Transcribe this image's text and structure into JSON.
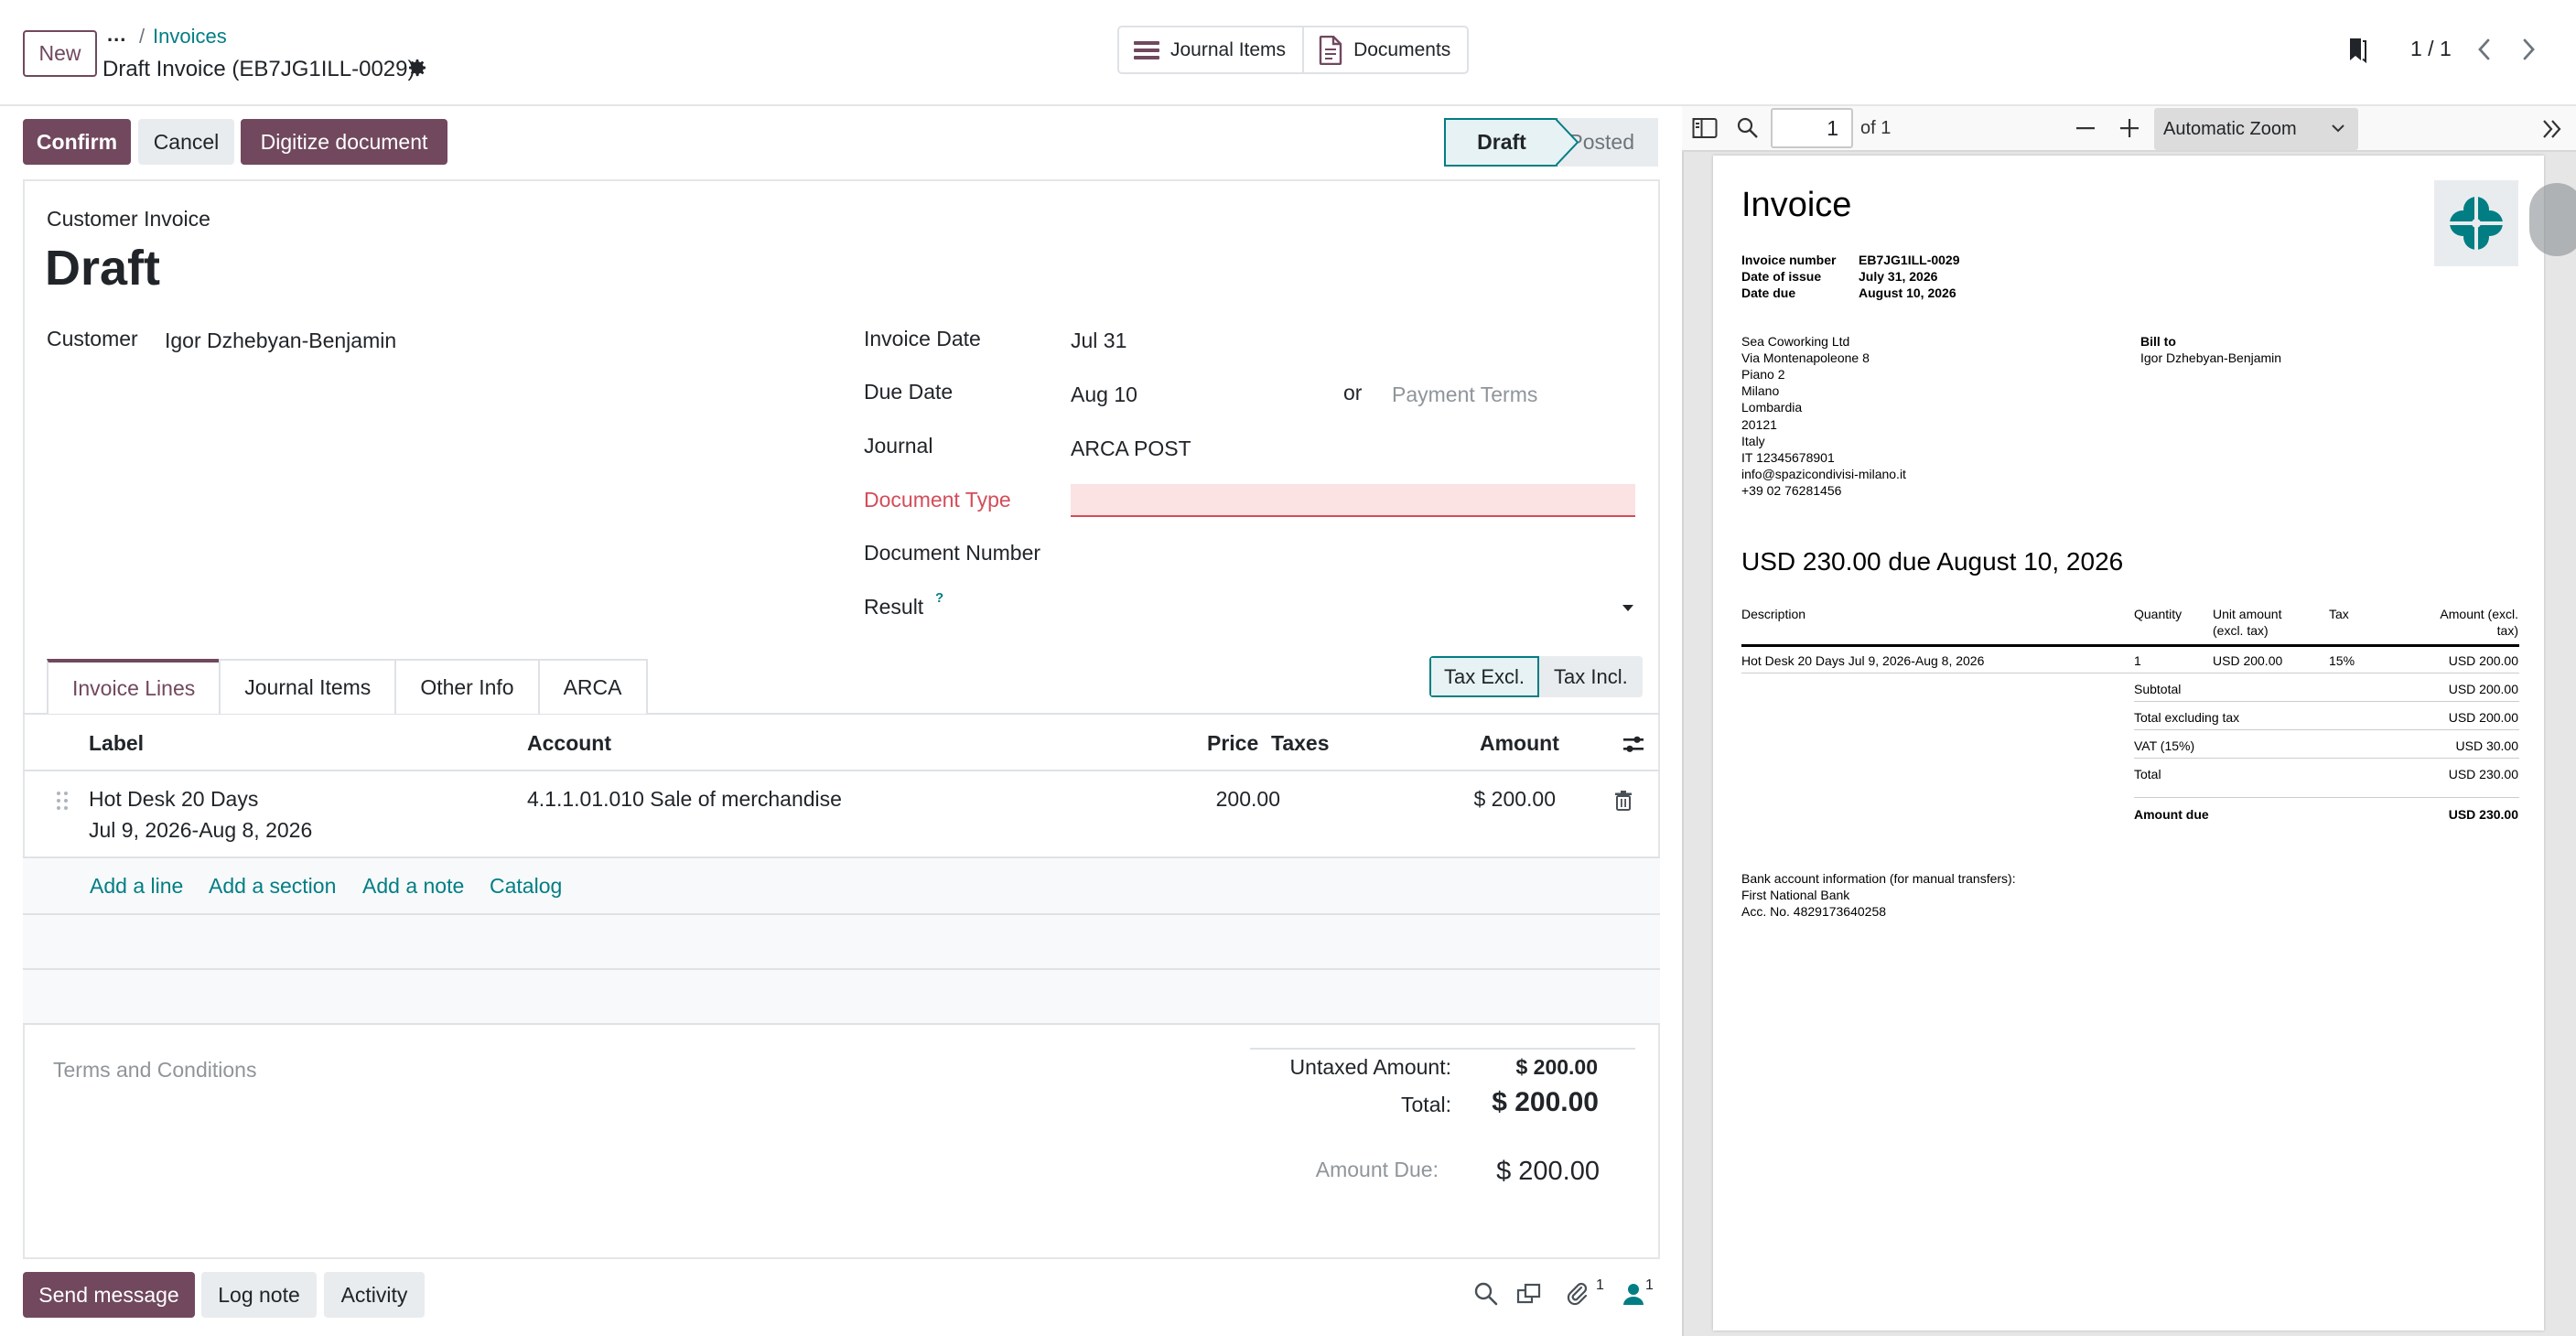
{
  "topbar": {
    "new_label": "New",
    "breadcrumb_dots": "...",
    "breadcrumb_sep": "/",
    "breadcrumb_parent": "Invoices",
    "record_title": "Draft Invoice (EB7JG1ILL-0029)",
    "smart_buttons": [
      {
        "label": "Journal Items",
        "icon": "list-icon"
      },
      {
        "label": "Documents",
        "icon": "document-icon"
      }
    ],
    "pager": "1 / 1"
  },
  "statusbar": {
    "confirm": "Confirm",
    "cancel": "Cancel",
    "digitize": "Digitize document",
    "stages": [
      "Draft",
      "Posted"
    ],
    "current_stage": "Draft"
  },
  "form": {
    "type_label": "Customer Invoice",
    "state_title": "Draft",
    "customer_label": "Customer",
    "customer_value": "Igor Dzhebyan-Benjamin",
    "invoice_date_label": "Invoice Date",
    "invoice_date_value": "Jul 31",
    "due_date_label": "Due Date",
    "due_date_value": "Aug 10",
    "or_label": "or",
    "payment_terms_placeholder": "Payment Terms",
    "journal_label": "Journal",
    "journal_value": "ARCA POST",
    "document_type_label": "Document Type",
    "document_type_value": "",
    "document_number_label": "Document Number",
    "result_label": "Result",
    "result_help": "?"
  },
  "tabs": [
    {
      "label": "Invoice Lines",
      "active": true
    },
    {
      "label": "Journal Items",
      "active": false
    },
    {
      "label": "Other Info",
      "active": false
    },
    {
      "label": "ARCA",
      "active": false
    }
  ],
  "tax_toggle": {
    "excl": "Tax Excl.",
    "incl": "Tax Incl."
  },
  "lines": {
    "headers": {
      "label": "Label",
      "account": "Account",
      "price": "Price",
      "taxes": "Taxes",
      "amount": "Amount"
    },
    "rows": [
      {
        "label_line1": "Hot Desk 20 Days",
        "label_line2": "Jul 9, 2026-Aug 8, 2026",
        "account": "4.1.1.01.010 Sale of merchandise",
        "price": "200.00",
        "taxes": "",
        "amount": "$ 200.00"
      }
    ],
    "actions": {
      "add_line": "Add a line",
      "add_section": "Add a section",
      "add_note": "Add a note",
      "catalog": "Catalog"
    }
  },
  "footer": {
    "terms_placeholder": "Terms and Conditions",
    "untaxed_label": "Untaxed Amount:",
    "untaxed_value": "$ 200.00",
    "total_label": "Total:",
    "total_value": "$ 200.00",
    "amount_due_label": "Amount Due:",
    "amount_due_value": "$ 200.00"
  },
  "chatter": {
    "send_message": "Send message",
    "log_note": "Log note",
    "activity": "Activity",
    "attachments_count": "1",
    "followers_count": "1"
  },
  "pdf_viewer": {
    "page_number": "1",
    "page_total": "of 1",
    "zoom": "Automatic Zoom",
    "doc": {
      "title": "Invoice",
      "meta": [
        {
          "k": "Invoice number",
          "v": "EB7JG1ILL-0029"
        },
        {
          "k": "Date of issue",
          "v": "July 31, 2026"
        },
        {
          "k": "Date due",
          "v": "August 10, 2026"
        }
      ],
      "from_lines": [
        "Sea Coworking Ltd",
        "Via Montenapoleone 8",
        "Piano 2",
        "Milano",
        "Lombardia",
        "20121",
        "Italy",
        "IT 12345678901",
        "info@spazicondivisi-milano.it",
        "+39 02 76281456"
      ],
      "bill_to_label": "Bill to",
      "bill_to_name": "Igor Dzhebyan-Benjamin",
      "amount_heading": "USD 230.00 due August 10, 2026",
      "table_headers": {
        "desc": "Description",
        "qty": "Quantity",
        "unit1": "Unit amount",
        "unit2": "(excl. tax)",
        "tax": "Tax",
        "amt1": "Amount (excl.",
        "amt2": "tax)"
      },
      "line": {
        "desc": "Hot Desk 20 Days Jul 9, 2026-Aug 8, 2026",
        "qty": "1",
        "unit": "USD 200.00",
        "tax": "15%",
        "amount": "USD 200.00"
      },
      "summary": [
        {
          "k": "Subtotal",
          "v": "USD 200.00"
        },
        {
          "k": "Total excluding tax",
          "v": "USD 200.00"
        },
        {
          "k": "VAT (15%)",
          "v": "USD 30.00"
        },
        {
          "k": "Total",
          "v": "USD 230.00"
        }
      ],
      "amount_due_label": "Amount due",
      "amount_due_value": "USD 230.00",
      "bank_lines": [
        "Bank account information (for manual transfers):",
        "First National Bank",
        "Acc. No. 4829173640258"
      ]
    }
  },
  "colors": {
    "primary": "#71485e",
    "teal": "#017e84",
    "danger": "#d44c59"
  }
}
